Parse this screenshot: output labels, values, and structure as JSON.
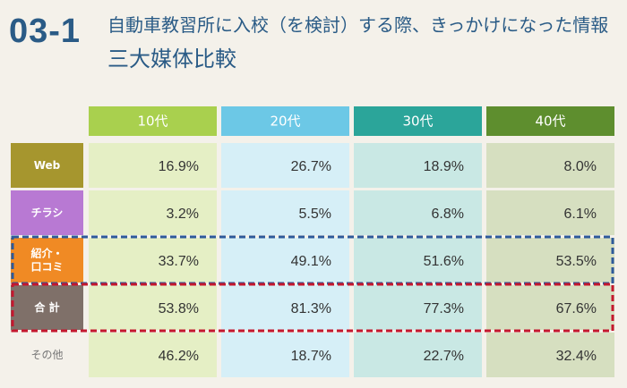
{
  "header": {
    "section_number": "03-1",
    "title_line1": "自動車教習所に入校（を検討）する際、きっかけになった情報",
    "title_line2": "三大媒体比較"
  },
  "chart_data": {
    "type": "table",
    "columns": [
      {
        "label": "10代",
        "header_color": "#a9d04e",
        "cell_color": "#e5efc5"
      },
      {
        "label": "20代",
        "header_color": "#6cc8e6",
        "cell_color": "#d6eff7"
      },
      {
        "label": "30代",
        "header_color": "#2ba59a",
        "cell_color": "#c9e8e4"
      },
      {
        "label": "40代",
        "header_color": "#5e8e2e",
        "cell_color": "#d6dfc0"
      }
    ],
    "rows": [
      {
        "label": "Web",
        "label_color": "#a6962e",
        "values": [
          16.9,
          26.7,
          18.9,
          8.0
        ],
        "display": [
          "16.9%",
          "26.7%",
          "18.9%",
          "8.0%"
        ]
      },
      {
        "label": "チラシ",
        "label_color": "#b879d3",
        "values": [
          3.2,
          5.5,
          6.8,
          6.1
        ],
        "display": [
          "3.2%",
          "5.5%",
          "6.8%",
          "6.1%"
        ]
      },
      {
        "label": "紹介・口コミ",
        "label_lines": [
          "紹介・",
          "口コミ"
        ],
        "label_color": "#f08a24",
        "values": [
          33.7,
          49.1,
          51.6,
          53.5
        ],
        "display": [
          "33.7%",
          "49.1%",
          "51.6%",
          "53.5%"
        ],
        "highlight": "#2e5a9a"
      },
      {
        "label": "合 計",
        "label_color": "#7f7069",
        "values": [
          53.8,
          81.3,
          77.3,
          67.6
        ],
        "display": [
          "53.8%",
          "81.3%",
          "77.3%",
          "67.6%"
        ],
        "highlight": "#c4172e"
      },
      {
        "label": "その他",
        "label_color": "#f4f1ea",
        "label_text_color": "#777777",
        "values": [
          46.2,
          18.7,
          22.7,
          32.4
        ],
        "display": [
          "46.2%",
          "18.7%",
          "22.7%",
          "32.4%"
        ]
      }
    ]
  }
}
